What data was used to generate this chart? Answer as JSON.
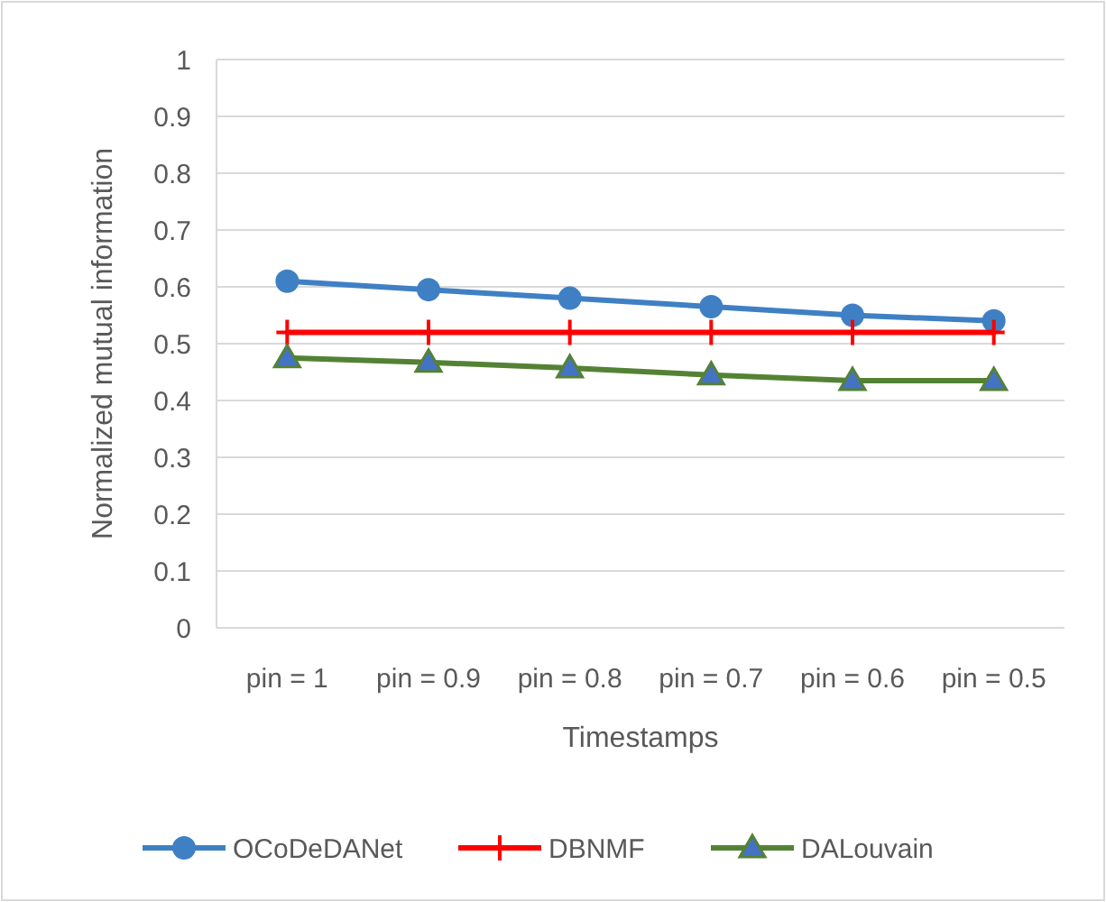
{
  "chart_data": {
    "type": "line",
    "xlabel": "Timestamps",
    "ylabel": "Normalized mutual information",
    "categories": [
      "pin = 1",
      "pin = 0.9",
      "pin = 0.8",
      "pin = 0.7",
      "pin = 0.6",
      "pin = 0.5"
    ],
    "series": [
      {
        "name": "OCoDeDANet",
        "color": "#3f80c4",
        "marker": "circle",
        "values": [
          0.61,
          0.595,
          0.58,
          0.565,
          0.55,
          0.54
        ]
      },
      {
        "name": "DBNMF",
        "color": "#ff0000",
        "marker": "cross",
        "values": [
          0.52,
          0.52,
          0.52,
          0.52,
          0.52,
          0.52
        ]
      },
      {
        "name": "DALouvain",
        "color": "#548235",
        "marker": "triangle",
        "values": [
          0.475,
          0.467,
          0.457,
          0.445,
          0.435,
          0.435
        ]
      }
    ],
    "ylim": [
      0,
      1
    ],
    "yticks": [
      0,
      0.1,
      0.2,
      0.3,
      0.4,
      0.5,
      0.6,
      0.7,
      0.8,
      0.9,
      1
    ],
    "grid": "y",
    "legend": "bottom"
  }
}
